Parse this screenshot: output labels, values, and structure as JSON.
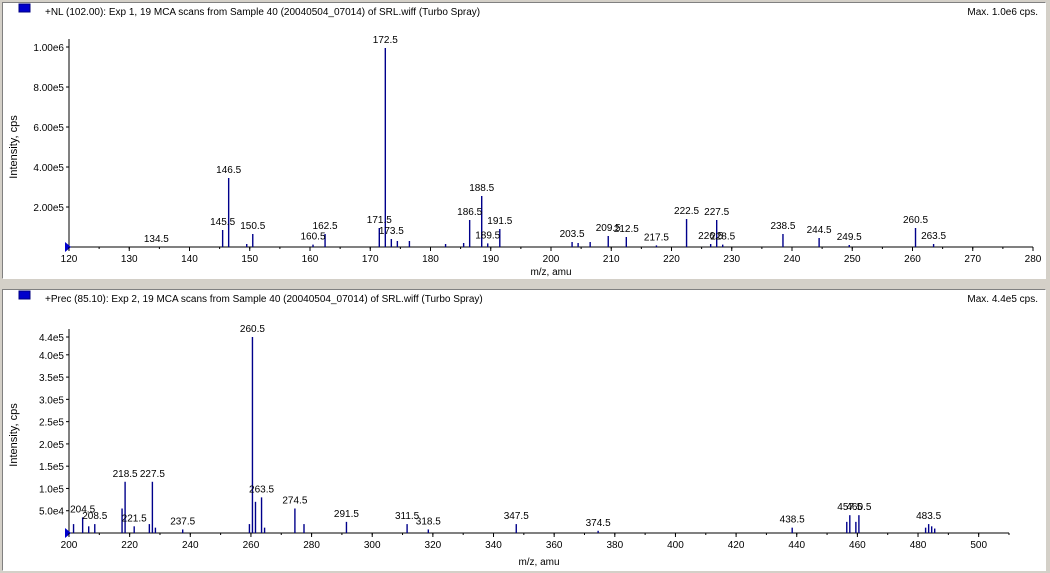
{
  "chart_data": [
    {
      "type": "bar",
      "title": "+NL (102.00): Exp 1, 19 MCA scans from Sample 40 (20040504_07014) of SRL.wiff (Turbo Spray)",
      "max_label": "Max. 1.0e6 cps.",
      "xlabel": "m/z, amu",
      "ylabel": "Intensity, cps",
      "xlim": [
        120,
        280
      ],
      "ylim": [
        0,
        1000000
      ],
      "xticks": [
        120,
        130,
        140,
        150,
        160,
        170,
        180,
        190,
        200,
        210,
        220,
        230,
        240,
        250,
        260,
        270,
        280
      ],
      "yticks": [
        {
          "value": 200000,
          "label": "2.00e5"
        },
        {
          "value": 400000,
          "label": "4.00e5"
        },
        {
          "value": 600000,
          "label": "6.00e5"
        },
        {
          "value": 800000,
          "label": "8.00e5"
        },
        {
          "value": 1000000,
          "label": "1.00e6"
        }
      ],
      "peaks": [
        {
          "mz": 145.5,
          "intensity": 85000
        },
        {
          "mz": 146.5,
          "intensity": 345000
        },
        {
          "mz": 149.5,
          "intensity": 15000
        },
        {
          "mz": 150.5,
          "intensity": 65000
        },
        {
          "mz": 160.5,
          "intensity": 12000
        },
        {
          "mz": 162.5,
          "intensity": 65000
        },
        {
          "mz": 171.5,
          "intensity": 95000
        },
        {
          "mz": 172.5,
          "intensity": 995000
        },
        {
          "mz": 173.5,
          "intensity": 40000
        },
        {
          "mz": 174.5,
          "intensity": 30000
        },
        {
          "mz": 176.5,
          "intensity": 30000
        },
        {
          "mz": 182.5,
          "intensity": 15000
        },
        {
          "mz": 185.5,
          "intensity": 20000
        },
        {
          "mz": 186.5,
          "intensity": 135000
        },
        {
          "mz": 188.5,
          "intensity": 255000
        },
        {
          "mz": 189.5,
          "intensity": 18000
        },
        {
          "mz": 191.5,
          "intensity": 90000
        },
        {
          "mz": 203.5,
          "intensity": 25000
        },
        {
          "mz": 204.5,
          "intensity": 20000
        },
        {
          "mz": 206.5,
          "intensity": 25000
        },
        {
          "mz": 209.5,
          "intensity": 55000
        },
        {
          "mz": 212.5,
          "intensity": 50000
        },
        {
          "mz": 217.5,
          "intensity": 8000
        },
        {
          "mz": 222.5,
          "intensity": 140000
        },
        {
          "mz": 226.5,
          "intensity": 15000
        },
        {
          "mz": 227.5,
          "intensity": 135000
        },
        {
          "mz": 228.5,
          "intensity": 12000
        },
        {
          "mz": 238.5,
          "intensity": 65000
        },
        {
          "mz": 244.5,
          "intensity": 45000
        },
        {
          "mz": 249.5,
          "intensity": 10000
        },
        {
          "mz": 260.5,
          "intensity": 95000
        },
        {
          "mz": 263.5,
          "intensity": 15000
        }
      ],
      "labels": [
        {
          "text": "134.5",
          "mz": 134.5,
          "intensity": 0
        },
        {
          "text": "145.5",
          "mz": 145.5,
          "intensity": 85000
        },
        {
          "text": "146.5",
          "mz": 146.5,
          "intensity": 345000
        },
        {
          "text": "150.5",
          "mz": 150.5,
          "intensity": 65000
        },
        {
          "text": "160.5",
          "mz": 160.5,
          "intensity": 12000
        },
        {
          "text": "162.5",
          "mz": 162.5,
          "intensity": 65000
        },
        {
          "text": "171.5",
          "mz": 171.5,
          "intensity": 95000
        },
        {
          "text": "172.5",
          "mz": 172.5,
          "intensity": 995000
        },
        {
          "text": "173.5",
          "mz": 173.5,
          "intensity": 40000
        },
        {
          "text": "186.5",
          "mz": 186.5,
          "intensity": 135000
        },
        {
          "text": "188.5",
          "mz": 188.5,
          "intensity": 255000
        },
        {
          "text": "189.5",
          "mz": 189.5,
          "intensity": 18000
        },
        {
          "text": "191.5",
          "mz": 191.5,
          "intensity": 90000
        },
        {
          "text": "203.5",
          "mz": 203.5,
          "intensity": 25000
        },
        {
          "text": "209.5",
          "mz": 209.5,
          "intensity": 55000
        },
        {
          "text": "212.5",
          "mz": 212.5,
          "intensity": 50000
        },
        {
          "text": "217.5",
          "mz": 217.5,
          "intensity": 8000
        },
        {
          "text": "222.5",
          "mz": 222.5,
          "intensity": 140000
        },
        {
          "text": "226.5",
          "mz": 226.5,
          "intensity": 15000
        },
        {
          "text": "227.5",
          "mz": 227.5,
          "intensity": 135000
        },
        {
          "text": "228.5",
          "mz": 228.5,
          "intensity": 12000
        },
        {
          "text": "238.5",
          "mz": 238.5,
          "intensity": 65000
        },
        {
          "text": "244.5",
          "mz": 244.5,
          "intensity": 45000
        },
        {
          "text": "249.5",
          "mz": 249.5,
          "intensity": 10000
        },
        {
          "text": "260.5",
          "mz": 260.5,
          "intensity": 95000
        },
        {
          "text": "263.5",
          "mz": 263.5,
          "intensity": 15000
        }
      ]
    },
    {
      "type": "bar",
      "title": "+Prec (85.10): Exp 2, 19 MCA scans from Sample 40 (20040504_07014) of SRL.wiff (Turbo Spray)",
      "max_label": "Max. 4.4e5 cps.",
      "xlabel": "m/z, amu",
      "ylabel": "Intensity, cps",
      "xlim": [
        200,
        510
      ],
      "ylim": [
        0,
        440000
      ],
      "xticks": [
        200,
        220,
        240,
        260,
        280,
        300,
        320,
        340,
        360,
        380,
        400,
        420,
        440,
        460,
        480,
        500
      ],
      "yticks": [
        {
          "value": 50000,
          "label": "5.0e4"
        },
        {
          "value": 100000,
          "label": "1.0e5"
        },
        {
          "value": 150000,
          "label": "1.5e5"
        },
        {
          "value": 200000,
          "label": "2.0e5"
        },
        {
          "value": 250000,
          "label": "2.5e5"
        },
        {
          "value": 300000,
          "label": "3.0e5"
        },
        {
          "value": 350000,
          "label": "3.5e5"
        },
        {
          "value": 400000,
          "label": "4.0e5"
        },
        {
          "value": 440000,
          "label": "4.4e5"
        }
      ],
      "peaks": [
        {
          "mz": 201.5,
          "intensity": 20000
        },
        {
          "mz": 204.5,
          "intensity": 35000
        },
        {
          "mz": 206.5,
          "intensity": 15000
        },
        {
          "mz": 208.5,
          "intensity": 20000
        },
        {
          "mz": 217.5,
          "intensity": 55000
        },
        {
          "mz": 218.5,
          "intensity": 115000
        },
        {
          "mz": 221.5,
          "intensity": 15000
        },
        {
          "mz": 226.5,
          "intensity": 20000
        },
        {
          "mz": 227.5,
          "intensity": 115000
        },
        {
          "mz": 228.5,
          "intensity": 12000
        },
        {
          "mz": 237.5,
          "intensity": 8000
        },
        {
          "mz": 259.5,
          "intensity": 20000
        },
        {
          "mz": 260.5,
          "intensity": 440000
        },
        {
          "mz": 261.5,
          "intensity": 70000
        },
        {
          "mz": 263.5,
          "intensity": 80000
        },
        {
          "mz": 264.5,
          "intensity": 12000
        },
        {
          "mz": 274.5,
          "intensity": 55000
        },
        {
          "mz": 277.5,
          "intensity": 20000
        },
        {
          "mz": 291.5,
          "intensity": 25000
        },
        {
          "mz": 311.5,
          "intensity": 20000
        },
        {
          "mz": 318.5,
          "intensity": 8000
        },
        {
          "mz": 347.5,
          "intensity": 20000
        },
        {
          "mz": 374.5,
          "intensity": 5000
        },
        {
          "mz": 438.5,
          "intensity": 12000
        },
        {
          "mz": 456.5,
          "intensity": 25000
        },
        {
          "mz": 457.5,
          "intensity": 40000
        },
        {
          "mz": 459.5,
          "intensity": 25000
        },
        {
          "mz": 460.5,
          "intensity": 40000
        },
        {
          "mz": 482.5,
          "intensity": 12000
        },
        {
          "mz": 483.5,
          "intensity": 20000
        },
        {
          "mz": 484.5,
          "intensity": 15000
        },
        {
          "mz": 485.5,
          "intensity": 10000
        }
      ],
      "labels": [
        {
          "text": "204.5",
          "mz": 204.5,
          "intensity": 35000
        },
        {
          "text": "208.5",
          "mz": 208.5,
          "intensity": 20000
        },
        {
          "text": "218.5",
          "mz": 218.5,
          "intensity": 115000
        },
        {
          "text": "221.5",
          "mz": 221.5,
          "intensity": 15000
        },
        {
          "text": "227.5",
          "mz": 227.5,
          "intensity": 115000
        },
        {
          "text": "237.5",
          "mz": 237.5,
          "intensity": 8000
        },
        {
          "text": "260.5",
          "mz": 260.5,
          "intensity": 440000
        },
        {
          "text": "263.5",
          "mz": 263.5,
          "intensity": 80000
        },
        {
          "text": "274.5",
          "mz": 274.5,
          "intensity": 55000
        },
        {
          "text": "291.5",
          "mz": 291.5,
          "intensity": 25000
        },
        {
          "text": "311.5",
          "mz": 311.5,
          "intensity": 20000
        },
        {
          "text": "318.5",
          "mz": 318.5,
          "intensity": 8000
        },
        {
          "text": "347.5",
          "mz": 347.5,
          "intensity": 20000
        },
        {
          "text": "374.5",
          "mz": 374.5,
          "intensity": 5000
        },
        {
          "text": "438.5",
          "mz": 438.5,
          "intensity": 12000
        },
        {
          "text": "457.5",
          "mz": 457.5,
          "intensity": 40000
        },
        {
          "text": "460.5",
          "mz": 460.5,
          "intensity": 40000
        },
        {
          "text": "483.5",
          "mz": 483.5,
          "intensity": 20000
        }
      ]
    }
  ],
  "colors": {
    "peak": "#00008b",
    "axis": "#000000",
    "marker": "#0000cc",
    "panel_bg": "#ffffff",
    "window_bg": "#d4d0c8"
  }
}
